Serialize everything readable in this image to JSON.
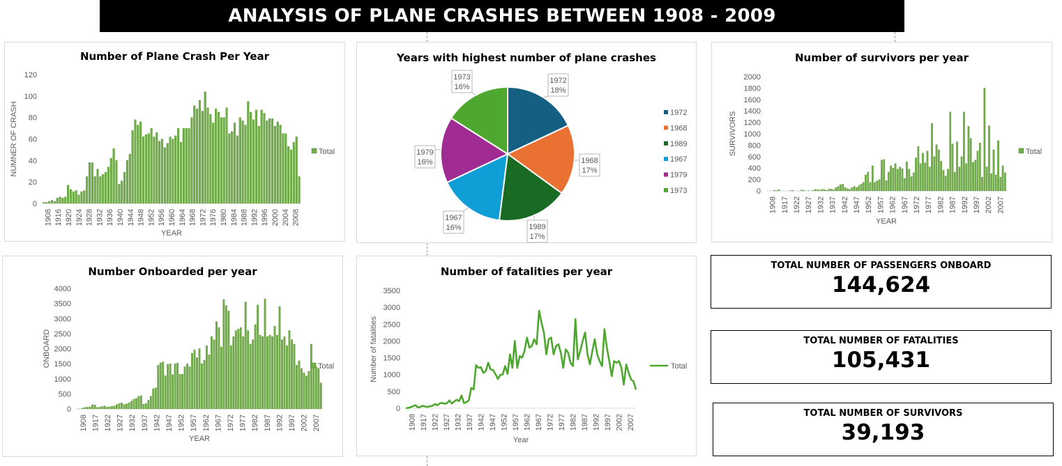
{
  "page_title": "ANALYSIS OF PLANE CRASHES BETWEEN 1908 - 2009",
  "colors": {
    "bar": "#70ad47",
    "line": "#4ea72e",
    "pie": [
      "#156082",
      "#e97132",
      "#196b24",
      "#0f9ed5",
      "#a02b93",
      "#4ea72e"
    ]
  },
  "kpis": [
    {
      "label": "TOTAL NUMBER OF PASSENGERS ONBOARD",
      "value": "144,624"
    },
    {
      "label": "TOTAL NUMBER OF FATALITIES",
      "value": "105,431"
    },
    {
      "label": "TOTAL NUMBER OF SURVIVORS",
      "value": "39,193"
    }
  ],
  "chart_data": [
    {
      "id": "crashes",
      "type": "bar",
      "title": "Number of Plane Crash Per Year",
      "xlabel": "YEAR",
      "ylabel": "NUMNER OF CRASH",
      "ylim": [
        0,
        120
      ],
      "yticks": [
        0,
        20,
        40,
        60,
        80,
        100,
        120
      ],
      "xticks": [
        "1908",
        "1916",
        "1920",
        "1924",
        "1928",
        "1932",
        "1936",
        "1940",
        "1944",
        "1948",
        "1952",
        "1956",
        "1960",
        "1964",
        "1968",
        "1972",
        "1976",
        "1980",
        "1984",
        "1988",
        "1992",
        "1996",
        "2000",
        "2004",
        "2008"
      ],
      "legend": "Total",
      "values": [
        1,
        1,
        2,
        3,
        2,
        5,
        6,
        5,
        6,
        17,
        13,
        11,
        12,
        8,
        11,
        12,
        25,
        38,
        38,
        25,
        32,
        25,
        27,
        29,
        34,
        42,
        51,
        40,
        18,
        21,
        29,
        40,
        46,
        68,
        78,
        73,
        76,
        62,
        64,
        65,
        70,
        62,
        66,
        58,
        60,
        52,
        56,
        62,
        60,
        63,
        70,
        57,
        70,
        70,
        70,
        80,
        91,
        88,
        96,
        86,
        104,
        89,
        83,
        75,
        88,
        85,
        80,
        80,
        89,
        65,
        67,
        75,
        63,
        80,
        77,
        73,
        95,
        85,
        78,
        87,
        72,
        87,
        84,
        77,
        79,
        79,
        72,
        76,
        73,
        65,
        65,
        53,
        50,
        57,
        62,
        25
      ]
    },
    {
      "id": "pie",
      "type": "pie",
      "title": "Years with highest number of plane crashes",
      "slices": [
        {
          "label": "1972",
          "pct": "18%",
          "value": 18
        },
        {
          "label": "1968",
          "pct": "17%",
          "value": 17
        },
        {
          "label": "1989",
          "pct": "17%",
          "value": 17
        },
        {
          "label": "1967",
          "pct": "16%",
          "value": 16
        },
        {
          "label": "1979",
          "pct": "16%",
          "value": 16
        },
        {
          "label": "1973",
          "pct": "16%",
          "value": 16
        }
      ],
      "legend_placement": "right"
    },
    {
      "id": "survivors",
      "type": "bar",
      "title": "Number of survivors per year",
      "xlabel": "YEAR",
      "ylabel": "SURVIVORS",
      "ylim": [
        0,
        2000
      ],
      "yticks": [
        0,
        200,
        400,
        600,
        800,
        1000,
        1200,
        1400,
        1600,
        1800,
        2000
      ],
      "xticks": [
        "1908",
        "1917",
        "1922",
        "1927",
        "1932",
        "1937",
        "1942",
        "1947",
        "1952",
        "1957",
        "1962",
        "1967",
        "1972",
        "1977",
        "1982",
        "1987",
        "1992",
        "1997",
        "2002",
        "2007"
      ],
      "legend": "Total",
      "values": [
        0,
        0,
        0,
        10,
        5,
        20,
        0,
        0,
        0,
        0,
        5,
        10,
        0,
        0,
        0,
        15,
        10,
        0,
        5,
        0,
        10,
        25,
        20,
        15,
        30,
        20,
        10,
        35,
        30,
        20,
        60,
        80,
        110,
        120,
        60,
        40,
        30,
        60,
        80,
        60,
        90,
        120,
        150,
        280,
        330,
        150,
        440,
        150,
        180,
        200,
        540,
        550,
        180,
        330,
        440,
        400,
        480,
        380,
        420,
        390,
        220,
        510,
        380,
        250,
        320,
        580,
        780,
        480,
        660,
        490,
        700,
        420,
        1180,
        600,
        810,
        720,
        520,
        360,
        260,
        380,
        1380,
        820,
        330,
        860,
        420,
        600,
        1380,
        480,
        1130,
        920,
        500,
        540,
        700,
        840,
        240,
        1800,
        420,
        1140,
        300,
        720,
        280,
        880,
        240,
        440,
        320
      ]
    },
    {
      "id": "onboard",
      "type": "bar",
      "title": "Number Onboarded per year",
      "xlabel": "YEAR",
      "ylabel": "ONBOARD",
      "ylim": [
        0,
        4000
      ],
      "yticks": [
        0,
        500,
        1000,
        1500,
        2000,
        2500,
        3000,
        3500,
        4000
      ],
      "xticks": [
        "1908",
        "1917",
        "1922",
        "1927",
        "1932",
        "1937",
        "1942",
        "1947",
        "1952",
        "1957",
        "1962",
        "1967",
        "1972",
        "1977",
        "1982",
        "1987",
        "1992",
        "1997",
        "2002",
        "2007"
      ],
      "legend": "Total",
      "values": [
        2,
        1,
        30,
        50,
        60,
        70,
        140,
        130,
        50,
        60,
        80,
        100,
        60,
        70,
        90,
        100,
        150,
        180,
        200,
        150,
        170,
        200,
        260,
        320,
        350,
        420,
        440,
        160,
        180,
        290,
        420,
        670,
        700,
        1450,
        1530,
        1560,
        1100,
        1480,
        1500,
        1140,
        1500,
        1520,
        1150,
        1150,
        1400,
        1500,
        1400,
        1850,
        1960,
        1700,
        2000,
        1500,
        1620,
        2100,
        1800,
        2400,
        2300,
        2900,
        2700,
        2050,
        3630,
        3430,
        3250,
        2100,
        2400,
        2600,
        2650,
        2700,
        2400,
        3550,
        2600,
        2150,
        2300,
        2800,
        3450,
        2450,
        2400,
        3650,
        2400,
        2450,
        2400,
        2750,
        2450,
        3400,
        2300,
        2400,
        2100,
        2600,
        2300,
        2150,
        1450,
        1600,
        1350,
        1200,
        1100,
        1250,
        2150,
        1400,
        1400,
        1350,
        860
      ]
    },
    {
      "id": "fatalities",
      "type": "line",
      "title": "Number of fatalities per year",
      "xlabel": "Year",
      "ylabel": "Number of fatalities",
      "ylim": [
        0,
        3500
      ],
      "yticks": [
        0,
        500,
        1000,
        1500,
        2000,
        2500,
        3000,
        3500
      ],
      "xticks": [
        "1908",
        "1917",
        "1922",
        "1927",
        "1932",
        "1937",
        "1942",
        "1947",
        "1952",
        "1957",
        "1962",
        "1967",
        "1972",
        "1977",
        "1982",
        "1987",
        "1992",
        "1997",
        "2002",
        "2007"
      ],
      "legend": "Total",
      "values": [
        1,
        10,
        30,
        60,
        90,
        20,
        40,
        70,
        50,
        40,
        60,
        70,
        120,
        90,
        140,
        160,
        130,
        150,
        230,
        140,
        200,
        250,
        210,
        380,
        150,
        180,
        230,
        600,
        560,
        1280,
        1200,
        1220,
        1050,
        1100,
        1350,
        1150,
        1130,
        1010,
        870,
        990,
        1000,
        1250,
        1020,
        1600,
        1200,
        2000,
        1200,
        1550,
        1500,
        1700,
        2100,
        1800,
        1850,
        2050,
        1900,
        2900,
        2550,
        2250,
        1600,
        2050,
        2100,
        1600,
        1850,
        1900,
        1650,
        1200,
        1750,
        1650,
        1350,
        1250,
        2650,
        1450,
        1700,
        2000,
        2250,
        1600,
        1300,
        1700,
        2050,
        1600,
        1400,
        1250,
        2350,
        1800,
        1400,
        950,
        1400,
        1350,
        1400,
        1200,
        700,
        1300,
        1050,
        850,
        800,
        550
      ]
    }
  ]
}
